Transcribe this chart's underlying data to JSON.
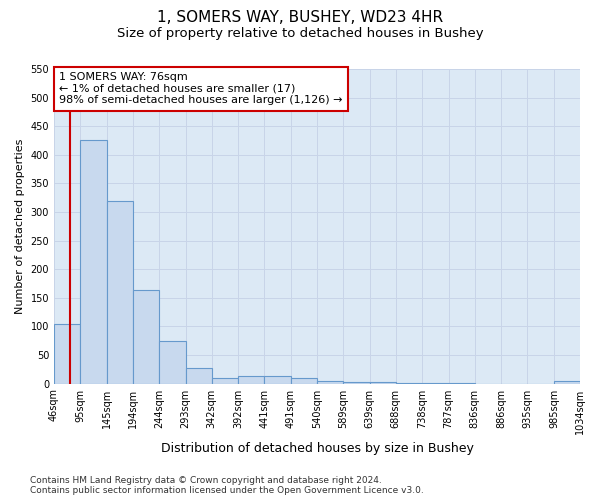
{
  "title1": "1, SOMERS WAY, BUSHEY, WD23 4HR",
  "title2": "Size of property relative to detached houses in Bushey",
  "xlabel": "Distribution of detached houses by size in Bushey",
  "ylabel": "Number of detached properties",
  "bin_edges": [
    46,
    95,
    145,
    194,
    244,
    293,
    342,
    392,
    441,
    491,
    540,
    589,
    639,
    688,
    738,
    787,
    836,
    886,
    935,
    985,
    1034
  ],
  "bar_heights": [
    105,
    425,
    320,
    163,
    75,
    28,
    10,
    13,
    13,
    10,
    5,
    2,
    2,
    1,
    1,
    1,
    0,
    0,
    0,
    5
  ],
  "bar_color": "#c8d9ee",
  "bar_edge_color": "#6699cc",
  "property_size": 76,
  "red_line_color": "#cc0000",
  "annotation_line1": "1 SOMERS WAY: 76sqm",
  "annotation_line2": "← 1% of detached houses are smaller (17)",
  "annotation_line3": "98% of semi-detached houses are larger (1,126) →",
  "annotation_box_color": "#cc0000",
  "ylim": [
    0,
    550
  ],
  "yticks": [
    0,
    50,
    100,
    150,
    200,
    250,
    300,
    350,
    400,
    450,
    500,
    550
  ],
  "footer": "Contains HM Land Registry data © Crown copyright and database right 2024.\nContains public sector information licensed under the Open Government Licence v3.0.",
  "fig_bg_color": "#ffffff",
  "plot_bg_color": "#dce9f5",
  "grid_color": "#c8d4e8",
  "title1_fontsize": 11,
  "title2_fontsize": 9.5,
  "xlabel_fontsize": 9,
  "ylabel_fontsize": 8,
  "tick_fontsize": 7,
  "footer_fontsize": 6.5
}
